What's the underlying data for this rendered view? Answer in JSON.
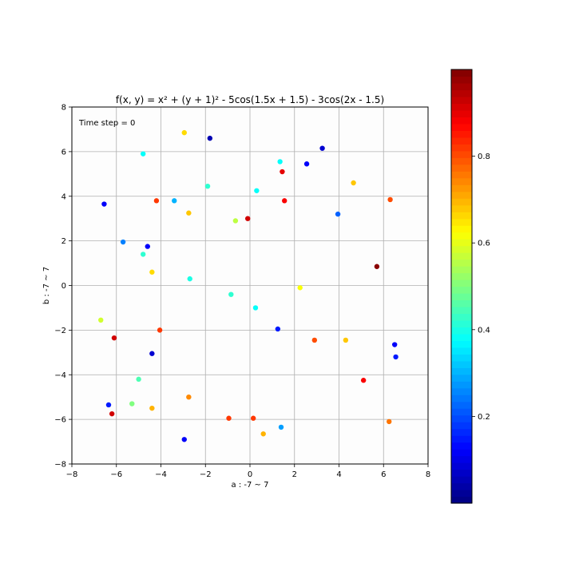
{
  "chart_data": {
    "type": "scatter",
    "title": "f(x, y) = x² + (y + 1)² - 5cos(1.5x + 1.5) - 3cos(2x - 1.5)",
    "xlabel": "a : -7 ~ 7",
    "ylabel": "b : -7 ~ 7",
    "xlim": [
      -8,
      8
    ],
    "ylim": [
      -8,
      8
    ],
    "xticks": [
      -8,
      -6,
      -4,
      -2,
      0,
      2,
      4,
      6,
      8
    ],
    "yticks": [
      -8,
      -6,
      -4,
      -2,
      0,
      2,
      4,
      6,
      8
    ],
    "grid": true,
    "annotation": "Time step = 0",
    "colormap": "jet",
    "colorbar": {
      "range": [
        0.0,
        1.0
      ],
      "ticks": [
        0.2,
        0.4,
        0.6,
        0.8
      ],
      "tick_labels": [
        "0.2",
        "0.4",
        "0.6",
        "0.8"
      ]
    },
    "points": [
      {
        "x": -2.95,
        "y": 6.85,
        "c": 0.66
      },
      {
        "x": -1.8,
        "y": 6.6,
        "c": 0.05
      },
      {
        "x": 3.25,
        "y": 6.15,
        "c": 0.08
      },
      {
        "x": -4.8,
        "y": 5.9,
        "c": 0.38
      },
      {
        "x": 1.35,
        "y": 5.55,
        "c": 0.38
      },
      {
        "x": 2.55,
        "y": 5.45,
        "c": 0.12
      },
      {
        "x": 1.45,
        "y": 5.1,
        "c": 0.9
      },
      {
        "x": 4.65,
        "y": 4.6,
        "c": 0.68
      },
      {
        "x": -1.9,
        "y": 4.45,
        "c": 0.42
      },
      {
        "x": 0.3,
        "y": 4.25,
        "c": 0.38
      },
      {
        "x": 6.3,
        "y": 3.85,
        "c": 0.8
      },
      {
        "x": -4.2,
        "y": 3.8,
        "c": 0.82
      },
      {
        "x": -3.4,
        "y": 3.8,
        "c": 0.3
      },
      {
        "x": 1.55,
        "y": 3.8,
        "c": 0.88
      },
      {
        "x": -6.55,
        "y": 3.65,
        "c": 0.12
      },
      {
        "x": -2.75,
        "y": 3.25,
        "c": 0.68
      },
      {
        "x": 3.95,
        "y": 3.2,
        "c": 0.22
      },
      {
        "x": -0.1,
        "y": 3.0,
        "c": 0.92
      },
      {
        "x": -0.65,
        "y": 2.9,
        "c": 0.56
      },
      {
        "x": -5.7,
        "y": 1.95,
        "c": 0.25
      },
      {
        "x": -4.6,
        "y": 1.75,
        "c": 0.12
      },
      {
        "x": -4.8,
        "y": 1.4,
        "c": 0.42
      },
      {
        "x": 5.7,
        "y": 0.85,
        "c": 0.99
      },
      {
        "x": -4.4,
        "y": 0.6,
        "c": 0.66
      },
      {
        "x": -2.7,
        "y": 0.3,
        "c": 0.4
      },
      {
        "x": 2.25,
        "y": -0.1,
        "c": 0.62
      },
      {
        "x": -0.85,
        "y": -0.4,
        "c": 0.42
      },
      {
        "x": 0.25,
        "y": -1.0,
        "c": 0.38
      },
      {
        "x": -6.7,
        "y": -1.55,
        "c": 0.58
      },
      {
        "x": -4.05,
        "y": -2.0,
        "c": 0.82
      },
      {
        "x": 1.25,
        "y": -1.95,
        "c": 0.15
      },
      {
        "x": -6.1,
        "y": -2.35,
        "c": 0.92
      },
      {
        "x": 2.9,
        "y": -2.45,
        "c": 0.8
      },
      {
        "x": 4.3,
        "y": -2.45,
        "c": 0.68
      },
      {
        "x": 6.5,
        "y": -2.65,
        "c": 0.12
      },
      {
        "x": -4.4,
        "y": -3.05,
        "c": 0.08
      },
      {
        "x": 6.55,
        "y": -3.2,
        "c": 0.15
      },
      {
        "x": -5.0,
        "y": -4.2,
        "c": 0.45
      },
      {
        "x": 5.1,
        "y": -4.25,
        "c": 0.88
      },
      {
        "x": -2.75,
        "y": -5.0,
        "c": 0.74
      },
      {
        "x": -5.3,
        "y": -5.3,
        "c": 0.5
      },
      {
        "x": -6.35,
        "y": -5.35,
        "c": 0.15
      },
      {
        "x": -4.4,
        "y": -5.5,
        "c": 0.7
      },
      {
        "x": -6.2,
        "y": -5.75,
        "c": 0.92
      },
      {
        "x": -0.95,
        "y": -5.95,
        "c": 0.82
      },
      {
        "x": 0.15,
        "y": -5.95,
        "c": 0.82
      },
      {
        "x": 6.25,
        "y": -6.1,
        "c": 0.76
      },
      {
        "x": 1.4,
        "y": -6.35,
        "c": 0.28
      },
      {
        "x": 0.6,
        "y": -6.65,
        "c": 0.7
      },
      {
        "x": -2.95,
        "y": -6.9,
        "c": 0.12
      }
    ]
  }
}
